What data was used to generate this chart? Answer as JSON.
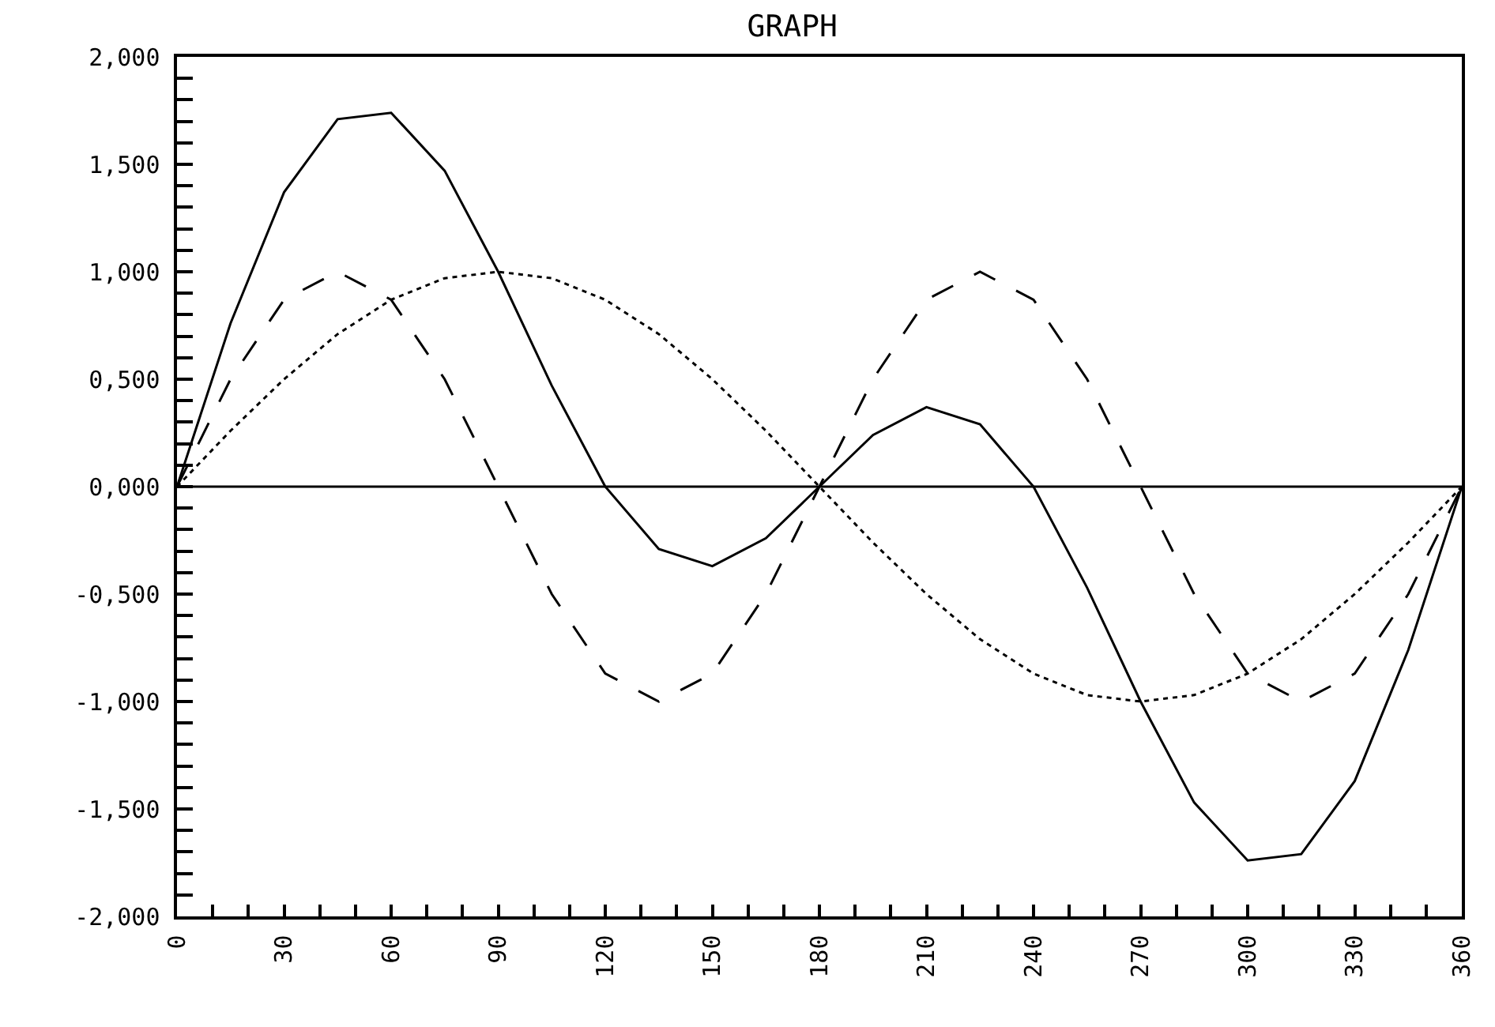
{
  "chart_data": {
    "type": "line",
    "title": "GRAPH",
    "x": [
      0,
      15,
      30,
      45,
      60,
      75,
      90,
      105,
      120,
      135,
      150,
      165,
      180,
      195,
      210,
      225,
      240,
      255,
      270,
      285,
      300,
      315,
      330,
      345,
      360
    ],
    "series": [
      {
        "color": "#000000",
        "line_style": "solid",
        "values": [
          0,
          0.76,
          1.37,
          1.71,
          1.74,
          1.47,
          1,
          0.47,
          0,
          -0.29,
          -0.37,
          -0.24,
          0,
          0.24,
          0.37,
          0.29,
          0,
          -0.47,
          -1,
          -1.47,
          -1.74,
          -1.71,
          -1.37,
          -0.76,
          0
        ]
      },
      {
        "color": "#000000",
        "line_style": "dashed",
        "values": [
          0,
          0.5,
          0.87,
          1,
          0.87,
          0.5,
          0,
          -0.5,
          -0.87,
          -1,
          -0.87,
          -0.5,
          0,
          0.5,
          0.87,
          1,
          0.87,
          0.5,
          0,
          -0.5,
          -0.87,
          -1,
          -0.87,
          -0.5,
          0
        ]
      },
      {
        "color": "#000000",
        "line_style": "dotted",
        "values": [
          0,
          0.26,
          0.5,
          0.71,
          0.87,
          0.97,
          1,
          0.97,
          0.87,
          0.71,
          0.5,
          0.26,
          0,
          -0.26,
          -0.5,
          -0.71,
          -0.87,
          -0.97,
          -1,
          -0.97,
          -0.87,
          -0.71,
          -0.5,
          -0.26,
          0
        ]
      }
    ],
    "xlim": [
      0,
      360
    ],
    "xticks": [
      0,
      {
        "value": 10,
        "label": null
      },
      {
        "value": 20,
        "label": null
      },
      30,
      {
        "value": 40,
        "label": null
      },
      {
        "value": 50,
        "label": null
      },
      60,
      {
        "value": 70,
        "label": null
      },
      {
        "value": 80,
        "label": null
      },
      90,
      {
        "value": 100,
        "label": null
      },
      {
        "value": 110,
        "label": null
      },
      120,
      {
        "value": 130,
        "label": null
      },
      {
        "value": 140,
        "label": null
      },
      150,
      {
        "value": 160,
        "label": null
      },
      {
        "value": 170,
        "label": null
      },
      180,
      {
        "value": 190,
        "label": null
      },
      {
        "value": 200,
        "label": null
      },
      210,
      {
        "value": 220,
        "label": null
      },
      {
        "value": 230,
        "label": null
      },
      240,
      {
        "value": 250,
        "label": null
      },
      {
        "value": 260,
        "label": null
      },
      270,
      {
        "value": 280,
        "label": null
      },
      {
        "value": 290,
        "label": null
      },
      300,
      {
        "value": 310,
        "label": null
      },
      {
        "value": 320,
        "label": null
      },
      330,
      {
        "value": 340,
        "label": null
      },
      {
        "value": 350,
        "label": null
      },
      360
    ],
    "ylim": [
      -2,
      2
    ],
    "yticks": [
      {
        "value": -2,
        "label": "-2,000"
      },
      {
        "value": -1.9,
        "label": null
      },
      {
        "value": -1.8,
        "label": null
      },
      {
        "value": -1.7,
        "label": null
      },
      {
        "value": -1.6,
        "label": null
      },
      {
        "value": -1.5,
        "label": "-1,500"
      },
      {
        "value": -1.4,
        "label": null
      },
      {
        "value": -1.3,
        "label": null
      },
      {
        "value": -1.2,
        "label": null
      },
      {
        "value": -1.1,
        "label": null
      },
      {
        "value": -1,
        "label": "-1,000"
      },
      {
        "value": -0.9,
        "label": null
      },
      {
        "value": -0.8,
        "label": null
      },
      {
        "value": -0.7,
        "label": null
      },
      {
        "value": -0.6,
        "label": null
      },
      {
        "value": -0.5,
        "label": "-0,500"
      },
      {
        "value": -0.4,
        "label": null
      },
      {
        "value": -0.3,
        "label": null
      },
      {
        "value": -0.2,
        "label": null
      },
      {
        "value": -0.1,
        "label": null
      },
      {
        "value": 0,
        "label": "0,000"
      },
      {
        "value": 0.1,
        "label": null
      },
      {
        "value": 0.2,
        "label": null
      },
      {
        "value": 0.3,
        "label": null
      },
      {
        "value": 0.4,
        "label": null
      },
      {
        "value": 0.5,
        "label": "0,500"
      },
      {
        "value": 0.6,
        "label": null
      },
      {
        "value": 0.7,
        "label": null
      },
      {
        "value": 0.8,
        "label": null
      },
      {
        "value": 0.9,
        "label": null
      },
      {
        "value": 1,
        "label": "1,000"
      },
      {
        "value": 1.1,
        "label": null
      },
      {
        "value": 1.2,
        "label": null
      },
      {
        "value": 1.3,
        "label": null
      },
      {
        "value": 1.4,
        "label": null
      },
      {
        "value": 1.5,
        "label": "1,500"
      },
      {
        "value": 1.6,
        "label": null
      },
      {
        "value": 1.7,
        "label": null
      },
      {
        "value": 1.8,
        "label": null
      },
      {
        "value": 1.9,
        "label": null
      },
      {
        "value": 2,
        "label": "2,000"
      }
    ],
    "ref_lines": [
      {
        "axis": "y",
        "value": 0,
        "color": "#000000",
        "line_style": "solid"
      }
    ],
    "grid": false,
    "marker": "none"
  }
}
